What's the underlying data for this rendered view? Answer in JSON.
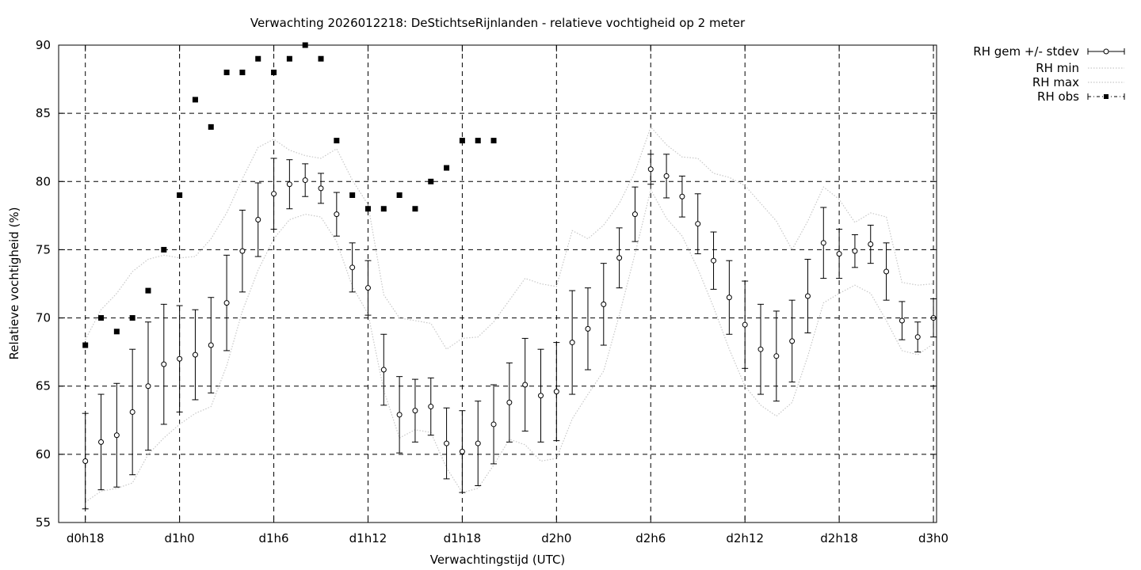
{
  "chart_data": {
    "type": "line",
    "title": "Verwachting 2026012218: DeStichtseRijnlanden - relatieve vochtigheid op 2 meter",
    "xlabel": "Verwachtingstijd (UTC)",
    "ylabel": "Relatieve vochtigheid (%)",
    "ylim": [
      55,
      90
    ],
    "xlim": [
      -1.7,
      54.2
    ],
    "y_ticks": [
      55,
      60,
      65,
      70,
      75,
      80,
      85,
      90
    ],
    "x_ticks": [
      {
        "x": 0,
        "label": "d0h18"
      },
      {
        "x": 6,
        "label": "d1h0"
      },
      {
        "x": 12,
        "label": "d1h6"
      },
      {
        "x": 18,
        "label": "d1h12"
      },
      {
        "x": 24,
        "label": "d1h18"
      },
      {
        "x": 30,
        "label": "d2h0"
      },
      {
        "x": 36,
        "label": "d2h6"
      },
      {
        "x": 42,
        "label": "d2h12"
      },
      {
        "x": 48,
        "label": "d2h18"
      },
      {
        "x": 54,
        "label": "d3h0"
      }
    ],
    "grid": true,
    "legend_position": "outside-top-right",
    "colors": {
      "mean": "#000000",
      "min": "#c8c8c8",
      "max": "#c8c8c8",
      "obs": "#000000",
      "grid": "#000000"
    },
    "series": [
      {
        "name": "RH gem +/- stdev",
        "style": "errorbars",
        "x": [
          0,
          1,
          2,
          3,
          4,
          5,
          6,
          7,
          8,
          9,
          10,
          11,
          12,
          13,
          14,
          15,
          16,
          17,
          18,
          19,
          20,
          21,
          22,
          23,
          24,
          25,
          26,
          27,
          28,
          29,
          30,
          31,
          32,
          33,
          34,
          35,
          36,
          37,
          38,
          39,
          40,
          41,
          42,
          43,
          44,
          45,
          46,
          47,
          48,
          49,
          50,
          51,
          52,
          53,
          54
        ],
        "values": [
          59.5,
          60.9,
          61.4,
          63.1,
          65.0,
          66.6,
          67.0,
          67.3,
          68.0,
          71.1,
          74.9,
          77.2,
          79.1,
          79.8,
          80.1,
          79.5,
          77.6,
          73.7,
          72.2,
          66.2,
          62.9,
          63.2,
          63.5,
          60.8,
          60.2,
          60.8,
          62.2,
          63.8,
          65.1,
          64.3,
          64.6,
          68.2,
          69.2,
          71.0,
          74.4,
          77.6,
          80.9,
          80.4,
          78.9,
          76.9,
          74.2,
          71.5,
          69.5,
          67.7,
          67.2,
          68.3,
          71.6,
          75.5,
          74.7,
          74.9,
          75.4,
          73.4,
          69.8,
          68.6,
          70.0
        ],
        "stdev": [
          3.5,
          3.5,
          3.8,
          4.6,
          4.7,
          4.4,
          3.9,
          3.3,
          3.5,
          3.5,
          3.0,
          2.7,
          2.6,
          1.8,
          1.2,
          1.1,
          1.6,
          1.8,
          2.0,
          2.6,
          2.8,
          2.3,
          2.1,
          2.6,
          3.0,
          3.1,
          2.9,
          2.9,
          3.4,
          3.4,
          3.6,
          3.8,
          3.0,
          3.0,
          2.2,
          2.0,
          1.1,
          1.6,
          1.5,
          2.2,
          2.1,
          2.7,
          3.2,
          3.3,
          3.3,
          3.0,
          2.7,
          2.6,
          1.8,
          1.2,
          1.4,
          2.1,
          1.4,
          1.1,
          1.4
        ]
      },
      {
        "name": "RH min",
        "style": "dotted",
        "x": [
          0,
          1,
          2,
          3,
          4,
          5,
          6,
          7,
          8,
          9,
          10,
          11,
          12,
          13,
          14,
          15,
          16,
          17,
          18,
          19,
          20,
          21,
          22,
          23,
          24,
          25,
          26,
          27,
          28,
          29,
          30,
          31,
          32,
          33,
          34,
          35,
          36,
          37,
          38,
          39,
          40,
          41,
          42,
          43,
          44,
          45,
          46,
          47,
          48,
          49,
          50,
          51,
          52,
          53,
          54
        ],
        "values": [
          56.5,
          57.3,
          57.5,
          57.9,
          60.0,
          61.2,
          62.2,
          63.0,
          63.5,
          66.5,
          70.5,
          73.5,
          75.8,
          77.2,
          77.6,
          77.4,
          75.6,
          72.3,
          70.3,
          64.7,
          61.2,
          61.8,
          61.6,
          59.0,
          57.2,
          57.5,
          59.2,
          61.1,
          60.7,
          59.5,
          59.7,
          62.6,
          64.4,
          66.1,
          70.2,
          74.7,
          79.4,
          77.3,
          76.0,
          73.6,
          70.8,
          67.7,
          65.0,
          63.6,
          62.8,
          63.8,
          67.2,
          71.1,
          71.8,
          72.4,
          71.8,
          69.8,
          67.6,
          67.3,
          68.1
        ]
      },
      {
        "name": "RH max",
        "style": "dotted",
        "x": [
          0,
          1,
          2,
          3,
          4,
          5,
          6,
          7,
          8,
          9,
          10,
          11,
          12,
          13,
          14,
          15,
          16,
          17,
          18,
          19,
          20,
          21,
          22,
          23,
          24,
          25,
          26,
          27,
          28,
          29,
          30,
          31,
          32,
          33,
          34,
          35,
          36,
          37,
          38,
          39,
          40,
          41,
          42,
          43,
          44,
          45,
          46,
          47,
          48,
          49,
          50,
          51,
          52,
          53,
          54
        ],
        "values": [
          68.4,
          70.6,
          71.8,
          73.4,
          74.3,
          74.6,
          74.4,
          74.5,
          75.8,
          77.7,
          80.2,
          82.5,
          83.1,
          82.3,
          81.9,
          81.7,
          82.4,
          80.1,
          78.3,
          71.7,
          70.0,
          69.8,
          69.6,
          67.7,
          68.5,
          68.6,
          69.7,
          71.3,
          72.9,
          72.5,
          72.3,
          76.4,
          75.8,
          76.8,
          78.4,
          80.7,
          84.0,
          82.7,
          81.8,
          81.7,
          80.6,
          80.3,
          79.7,
          78.4,
          77.1,
          75.0,
          77.1,
          79.6,
          78.7,
          77.0,
          77.7,
          77.4,
          72.6,
          72.4,
          72.5
        ]
      },
      {
        "name": "RH obs",
        "style": "points",
        "x": [
          0,
          1,
          2,
          3,
          4,
          5,
          6,
          7,
          8,
          9,
          10,
          11,
          12,
          13,
          14,
          15,
          16,
          17,
          18,
          19,
          20,
          21,
          22,
          23,
          24,
          25,
          26
        ],
        "values": [
          68,
          70,
          69,
          70,
          72,
          75,
          79,
          86,
          84,
          88,
          88,
          89,
          88,
          89,
          90,
          89,
          83,
          79,
          78,
          78,
          79,
          78,
          80,
          81,
          83,
          83,
          83
        ]
      }
    ]
  }
}
